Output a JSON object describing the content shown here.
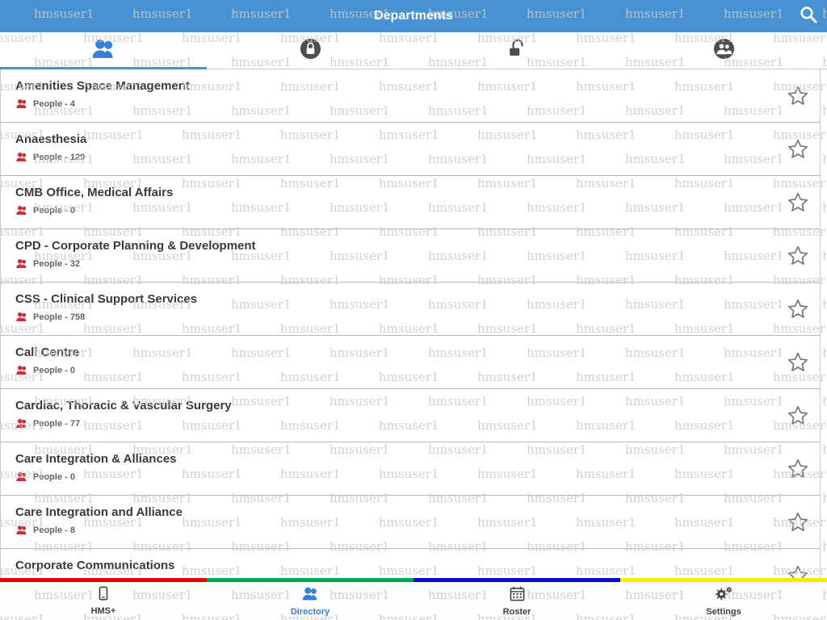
{
  "header": {
    "title": "Departments"
  },
  "watermark": {
    "text": "hmsuser1"
  },
  "tabs": [
    {
      "id": "people",
      "icon": "two-people",
      "active": true
    },
    {
      "id": "locked",
      "icon": "padlock-closed-in-circle",
      "active": false
    },
    {
      "id": "unlocked",
      "icon": "padlock-open",
      "active": false
    },
    {
      "id": "groups",
      "icon": "people-in-circle",
      "active": false
    }
  ],
  "departments": [
    {
      "name": "Amenities Space Management",
      "people_label": "People - 4"
    },
    {
      "name": "Anaesthesia",
      "people_label": "People - 129"
    },
    {
      "name": "CMB Office, Medical Affairs",
      "people_label": "People - 0"
    },
    {
      "name": "CPD - Corporate Planning & Development",
      "people_label": "People - 32"
    },
    {
      "name": "CSS - Clinical Support Services",
      "people_label": "People - 758"
    },
    {
      "name": "Call Centre",
      "people_label": "People - 0"
    },
    {
      "name": "Cardiac, Thoracic & Vascular Surgery",
      "people_label": "People - 77"
    },
    {
      "name": "Care Integration & Alliances",
      "people_label": "People - 0"
    },
    {
      "name": "Care Integration and Alliance",
      "people_label": "People - 8"
    },
    {
      "name": "Corporate Communications",
      "people_label": ""
    }
  ],
  "bottom_nav": [
    {
      "label": "HMS+",
      "icon": "smartphone",
      "active": false
    },
    {
      "label": "Directory",
      "icon": "two-people",
      "active": true
    },
    {
      "label": "Roster",
      "icon": "calendar",
      "active": false
    },
    {
      "label": "Settings",
      "icon": "gears",
      "active": false
    }
  ],
  "icons": {
    "search": "magnifier",
    "row_people": "two-people-red",
    "row_favorite": "star-outline"
  },
  "colors": {
    "header_bg": "#4792d3",
    "accent_blue": "#3a7fd5",
    "people_icon_red": "#c9303c",
    "watermark": "#c9c9c9",
    "stripe": [
      "#e60000",
      "#00a651",
      "#0d0dc8",
      "#ffe900"
    ]
  }
}
